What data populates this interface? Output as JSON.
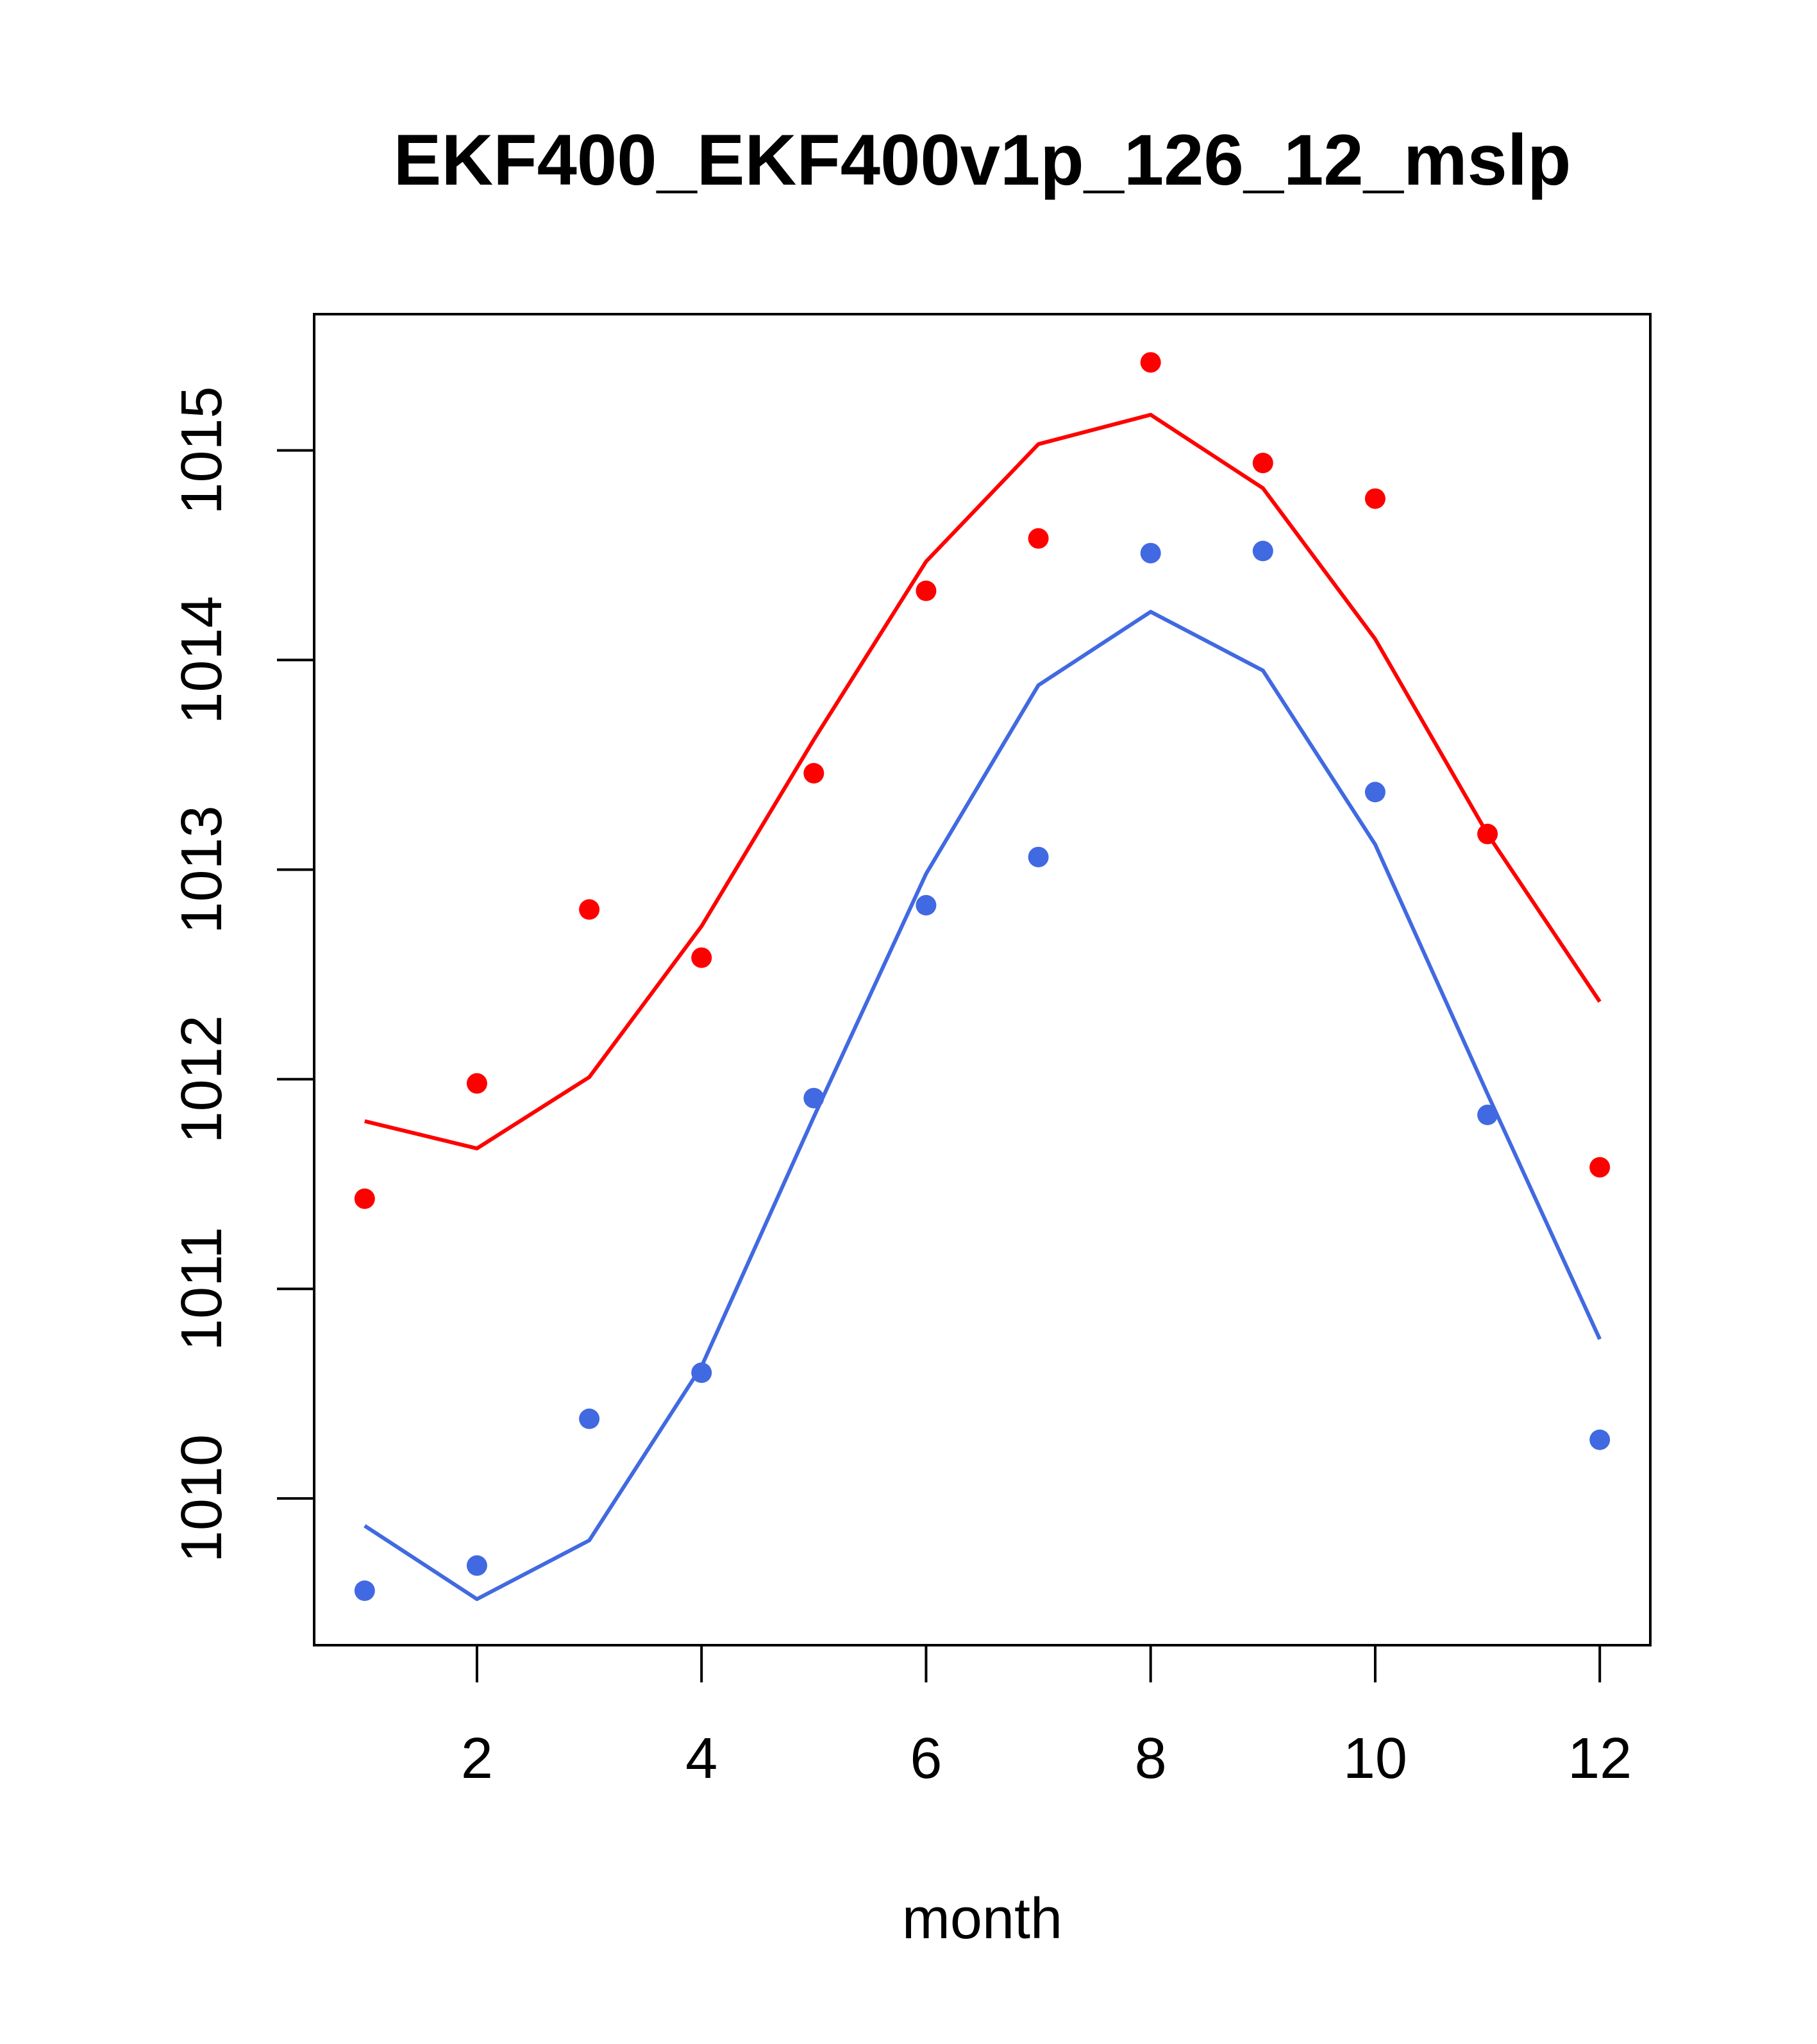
{
  "chart_data": {
    "type": "line",
    "title": "EKF400_EKF400v1p_126_12_mslp",
    "xlabel": "month",
    "ylabel": "",
    "xlim": [
      0.55,
      12.45
    ],
    "ylim": [
      1009.3,
      1015.65
    ],
    "x_ticks": [
      2,
      4,
      6,
      8,
      10,
      12
    ],
    "y_ticks": [
      1010,
      1011,
      1012,
      1013,
      1014,
      1015
    ],
    "grid": false,
    "series": [
      {
        "name": "red-line",
        "kind": "line",
        "color": "#ff0000",
        "x": [
          1,
          2,
          3,
          4,
          5,
          6,
          7,
          8,
          9,
          10,
          11,
          12
        ],
        "values": [
          1011.8,
          1011.67,
          1012.01,
          1012.73,
          1013.62,
          1014.47,
          1015.03,
          1015.17,
          1014.82,
          1014.1,
          1013.17,
          1012.37
        ]
      },
      {
        "name": "red-points",
        "kind": "points",
        "color": "#ff0000",
        "x": [
          1,
          2,
          3,
          4,
          5,
          6,
          7,
          8,
          9,
          10,
          11,
          12
        ],
        "values": [
          1011.43,
          1011.98,
          1012.81,
          1012.58,
          1013.46,
          1014.33,
          1014.58,
          1015.42,
          1014.94,
          1014.77,
          1013.17,
          1011.58
        ]
      },
      {
        "name": "blue-line",
        "kind": "line",
        "color": "#4169e1",
        "x": [
          1,
          2,
          3,
          4,
          5,
          6,
          7,
          8,
          9,
          10,
          11,
          12
        ],
        "values": [
          1009.87,
          1009.52,
          1009.8,
          1010.63,
          1011.82,
          1012.98,
          1013.88,
          1014.23,
          1013.95,
          1013.12,
          1011.93,
          1010.76
        ]
      },
      {
        "name": "blue-points",
        "kind": "points",
        "color": "#4169e1",
        "x": [
          1,
          2,
          3,
          4,
          5,
          6,
          7,
          8,
          9,
          10,
          11,
          12
        ],
        "values": [
          1009.56,
          1009.68,
          1010.38,
          1010.6,
          1011.91,
          1012.83,
          1013.06,
          1014.51,
          1014.52,
          1013.37,
          1011.83,
          1010.28
        ]
      }
    ]
  }
}
